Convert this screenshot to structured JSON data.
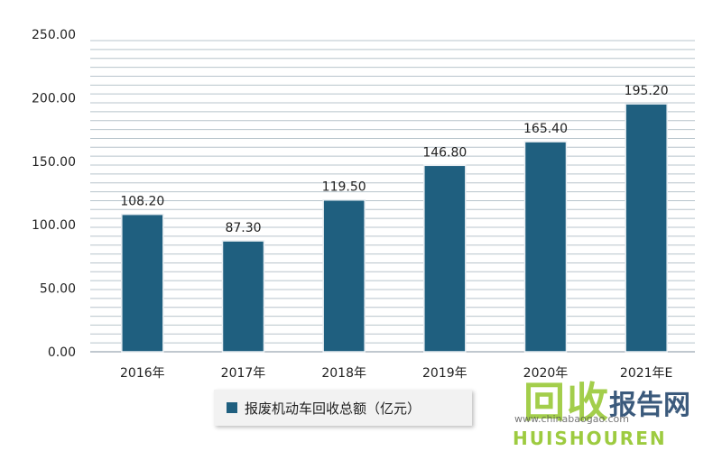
{
  "chart_data": {
    "type": "bar",
    "categories": [
      "2016年",
      "2017年",
      "2018年",
      "2019年",
      "2020年",
      "2021年E"
    ],
    "series": [
      {
        "name": "报废机动车回收总额（亿元）",
        "values": [
          108.2,
          87.3,
          119.5,
          146.8,
          165.4,
          195.2
        ],
        "data_labels": [
          "108.20",
          "87.30",
          "119.50",
          "146.80",
          "165.40",
          "195.20"
        ]
      }
    ],
    "ylim": [
      0,
      250
    ],
    "yticks": [
      "0.00",
      "50.00",
      "100.00",
      "150.00",
      "200.00",
      "250.00"
    ],
    "grid": true,
    "legend_position": "bottom",
    "bar_color": "#1f5f7f",
    "grid_color": "#b8c4cc",
    "background_color": "#ffffff"
  },
  "watermark": {
    "main": "回收",
    "right": "报告网",
    "url": "www.chinabaogao.com",
    "sub": "HUISHOUREN"
  }
}
